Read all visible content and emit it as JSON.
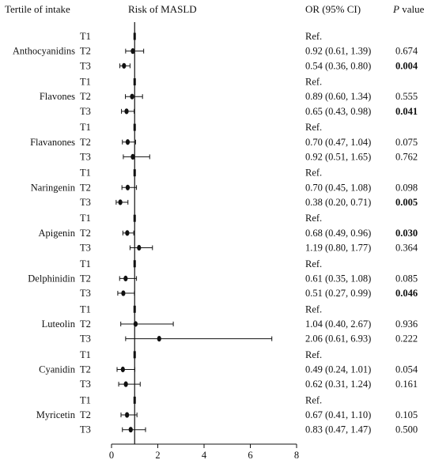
{
  "headers": {
    "tertile": "Tertile of intake",
    "risk": "Risk of MASLD",
    "or": "OR (95% CI)",
    "p_italic": "P",
    "p_rest": " value"
  },
  "chart_data": {
    "type": "forest",
    "title": "",
    "xlabel": "",
    "ylabel": "",
    "xlim": [
      0,
      8
    ],
    "xticks": [
      0,
      2,
      4,
      6,
      8
    ],
    "reference_line": 1,
    "grid": false,
    "groups": [
      {
        "name": "Anthocyanidins",
        "rows": [
          {
            "tertile": "T1",
            "or": 1,
            "lo": 1,
            "hi": 1,
            "or_text": "Ref.",
            "p": "",
            "bold": false
          },
          {
            "tertile": "T2",
            "or": 0.92,
            "lo": 0.61,
            "hi": 1.39,
            "or_text": "0.92 (0.61, 1.39)",
            "p": "0.674",
            "bold": false
          },
          {
            "tertile": "T3",
            "or": 0.54,
            "lo": 0.36,
            "hi": 0.8,
            "or_text": "0.54 (0.36, 0.80)",
            "p": "0.004",
            "bold": true
          }
        ]
      },
      {
        "name": "Flavones",
        "rows": [
          {
            "tertile": "T1",
            "or": 1,
            "lo": 1,
            "hi": 1,
            "or_text": "Ref.",
            "p": "",
            "bold": false
          },
          {
            "tertile": "T2",
            "or": 0.89,
            "lo": 0.6,
            "hi": 1.34,
            "or_text": "0.89 (0.60, 1.34)",
            "p": "0.555",
            "bold": false
          },
          {
            "tertile": "T3",
            "or": 0.65,
            "lo": 0.43,
            "hi": 0.98,
            "or_text": "0.65 (0.43, 0.98)",
            "p": "0.041",
            "bold": true
          }
        ]
      },
      {
        "name": "Flavanones",
        "rows": [
          {
            "tertile": "T1",
            "or": 1,
            "lo": 1,
            "hi": 1,
            "or_text": "Ref.",
            "p": "",
            "bold": false
          },
          {
            "tertile": "T2",
            "or": 0.7,
            "lo": 0.47,
            "hi": 1.04,
            "or_text": "0.70 (0.47, 1.04)",
            "p": "0.075",
            "bold": false
          },
          {
            "tertile": "T3",
            "or": 0.92,
            "lo": 0.51,
            "hi": 1.65,
            "or_text": "0.92 (0.51, 1.65)",
            "p": "0.762",
            "bold": false
          }
        ]
      },
      {
        "name": "Naringenin",
        "rows": [
          {
            "tertile": "T1",
            "or": 1,
            "lo": 1,
            "hi": 1,
            "or_text": "Ref.",
            "p": "",
            "bold": false
          },
          {
            "tertile": "T2",
            "or": 0.7,
            "lo": 0.45,
            "hi": 1.08,
            "or_text": "0.70 (0.45, 1.08)",
            "p": "0.098",
            "bold": false
          },
          {
            "tertile": "T3",
            "or": 0.38,
            "lo": 0.2,
            "hi": 0.71,
            "or_text": "0.38 (0.20, 0.71)",
            "p": "0.005",
            "bold": true
          }
        ]
      },
      {
        "name": "Apigenin",
        "rows": [
          {
            "tertile": "T1",
            "or": 1,
            "lo": 1,
            "hi": 1,
            "or_text": "Ref.",
            "p": "",
            "bold": false
          },
          {
            "tertile": "T2",
            "or": 0.68,
            "lo": 0.49,
            "hi": 0.96,
            "or_text": "0.68 (0.49, 0.96)",
            "p": "0.030",
            "bold": true
          },
          {
            "tertile": "T3",
            "or": 1.19,
            "lo": 0.8,
            "hi": 1.77,
            "or_text": "1.19 (0.80, 1.77)",
            "p": "0.364",
            "bold": false
          }
        ]
      },
      {
        "name": "Delphinidin",
        "rows": [
          {
            "tertile": "T1",
            "or": 1,
            "lo": 1,
            "hi": 1,
            "or_text": "Ref.",
            "p": "",
            "bold": false
          },
          {
            "tertile": "T2",
            "or": 0.61,
            "lo": 0.35,
            "hi": 1.08,
            "or_text": "0.61 (0.35, 1.08)",
            "p": "0.085",
            "bold": false
          },
          {
            "tertile": "T3",
            "or": 0.51,
            "lo": 0.27,
            "hi": 0.99,
            "or_text": "0.51 (0.27, 0.99)",
            "p": "0.046",
            "bold": true
          }
        ]
      },
      {
        "name": "Luteolin",
        "rows": [
          {
            "tertile": "T1",
            "or": 1,
            "lo": 1,
            "hi": 1,
            "or_text": "Ref.",
            "p": "",
            "bold": false
          },
          {
            "tertile": "T2",
            "or": 1.04,
            "lo": 0.4,
            "hi": 2.67,
            "or_text": "1.04 (0.40, 2.67)",
            "p": "0.936",
            "bold": false
          },
          {
            "tertile": "T3",
            "or": 2.06,
            "lo": 0.61,
            "hi": 6.93,
            "or_text": "2.06 (0.61, 6.93)",
            "p": "0.222",
            "bold": false
          }
        ]
      },
      {
        "name": "Cyanidin",
        "rows": [
          {
            "tertile": "T1",
            "or": 1,
            "lo": 1,
            "hi": 1,
            "or_text": "Ref.",
            "p": "",
            "bold": false
          },
          {
            "tertile": "T2",
            "or": 0.49,
            "lo": 0.24,
            "hi": 1.01,
            "or_text": "0.49 (0.24, 1.01)",
            "p": "0.054",
            "bold": false
          },
          {
            "tertile": "T3",
            "or": 0.62,
            "lo": 0.31,
            "hi": 1.24,
            "or_text": "0.62 (0.31, 1.24)",
            "p": "0.161",
            "bold": false
          }
        ]
      },
      {
        "name": "Myricetin",
        "rows": [
          {
            "tertile": "T1",
            "or": 1,
            "lo": 1,
            "hi": 1,
            "or_text": "Ref.",
            "p": "",
            "bold": false
          },
          {
            "tertile": "T2",
            "or": 0.67,
            "lo": 0.41,
            "hi": 1.1,
            "or_text": "0.67 (0.41, 1.10)",
            "p": "0.105",
            "bold": false
          },
          {
            "tertile": "T3",
            "or": 0.83,
            "lo": 0.47,
            "hi": 1.47,
            "or_text": "0.83 (0.47, 1.47)",
            "p": "0.500",
            "bold": false
          }
        ]
      }
    ]
  }
}
